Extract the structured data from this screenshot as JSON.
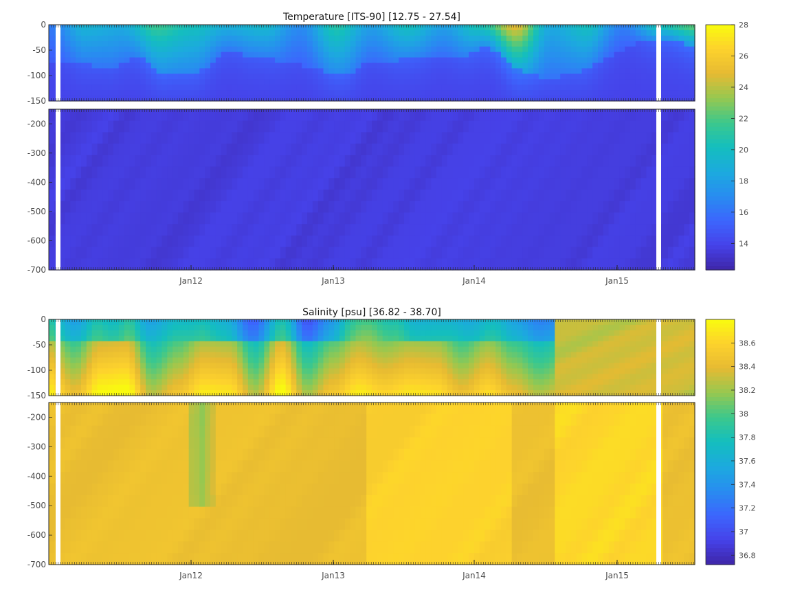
{
  "chart_data": [
    {
      "type": "heatmap",
      "variable": "temperature",
      "title": "Temperature [ITS-90]   [12.75 - 27.54]",
      "x_ticks": [
        "Jan12",
        "Jan13",
        "Jan14",
        "Jan15"
      ],
      "upper_panel": {
        "ylim": [
          -150,
          0
        ],
        "y_ticks": [
          0,
          -50,
          -100,
          -150
        ]
      },
      "lower_panel": {
        "ylim": [
          -700,
          -150
        ],
        "y_ticks": [
          -200,
          -300,
          -400,
          -500,
          -600,
          -700
        ]
      },
      "colorbar": {
        "range": [
          12.3,
          28
        ],
        "ticks": [
          14,
          16,
          18,
          20,
          22,
          24,
          26,
          28
        ]
      },
      "value_range": [
        12.75,
        27.54
      ],
      "colormap": "parula",
      "colors": {
        "low": "#3e3ccd",
        "mid": "#14b5c2",
        "high": "#f9fb0e"
      }
    },
    {
      "type": "heatmap",
      "variable": "salinity",
      "title": "Salinity [psu]   [36.82 - 38.70]",
      "x_ticks": [
        "Jan12",
        "Jan13",
        "Jan14",
        "Jan15"
      ],
      "upper_panel": {
        "ylim": [
          -150,
          0
        ],
        "y_ticks": [
          0,
          -50,
          -100,
          -150
        ]
      },
      "lower_panel": {
        "ylim": [
          -700,
          -150
        ],
        "y_ticks": [
          -200,
          -300,
          -400,
          -500,
          -600,
          -700
        ]
      },
      "colorbar": {
        "range": [
          36.72,
          38.8
        ],
        "ticks": [
          36.8,
          37,
          37.2,
          37.4,
          37.6,
          37.8,
          38,
          38.2,
          38.4,
          38.6
        ]
      },
      "value_range": [
        36.82,
        38.7
      ],
      "colormap": "parula",
      "colors": {
        "low": "#3e3ccd",
        "mid": "#14b5c2",
        "high": "#f9fb0e"
      }
    }
  ]
}
